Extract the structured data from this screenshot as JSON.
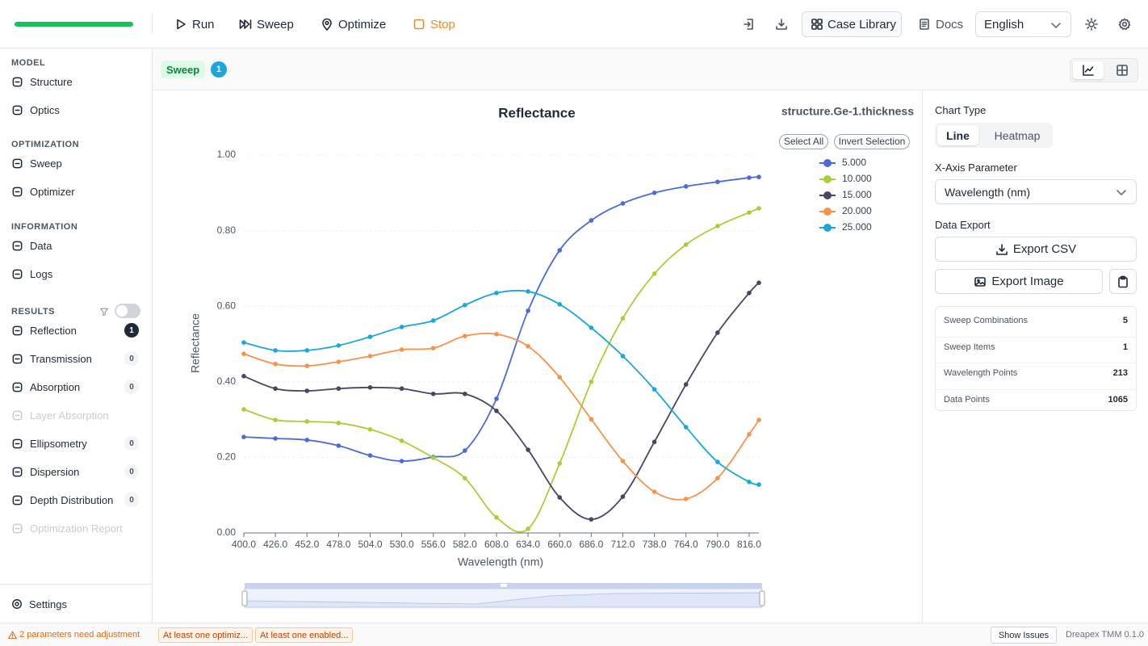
{
  "toolbar": {
    "actions": [
      "Run",
      "Sweep",
      "Optimize",
      "Stop"
    ],
    "case_library": "Case Library",
    "docs": "Docs",
    "language": "English"
  },
  "sidebar": {
    "sections": [
      {
        "title": "MODEL",
        "items": [
          {
            "label": "Structure"
          },
          {
            "label": "Optics"
          }
        ]
      },
      {
        "title": "OPTIMIZATION",
        "items": [
          {
            "label": "Sweep"
          },
          {
            "label": "Optimizer"
          }
        ]
      },
      {
        "title": "INFORMATION",
        "items": [
          {
            "label": "Data"
          },
          {
            "label": "Logs"
          }
        ]
      },
      {
        "title": "RESULTS",
        "items": [
          {
            "label": "Reflection",
            "badge": 1
          },
          {
            "label": "Transmission",
            "badge": 0
          },
          {
            "label": "Absorption",
            "badge": 0
          },
          {
            "label": "Layer Absorption",
            "disabled": true
          },
          {
            "label": "Ellipsometry",
            "badge": 0
          },
          {
            "label": "Dispersion",
            "badge": 0
          },
          {
            "label": "Depth Distribution",
            "badge": 0
          },
          {
            "label": "Optimization Report",
            "disabled": true
          }
        ]
      }
    ],
    "settings": "Settings"
  },
  "tab": {
    "label": "Sweep",
    "count": 1
  },
  "chart_data": {
    "type": "line",
    "title": "Reflectance",
    "legend_title": "structure.Ge-1.thickness",
    "legend_controls": [
      "Select All",
      "Invert Selection"
    ],
    "x_label": "Wavelength (nm)",
    "y_label": "Reflectance",
    "x": [
      400,
      426,
      452,
      478,
      504,
      530,
      556,
      582,
      608,
      634,
      660,
      686,
      712,
      738,
      764,
      790,
      816,
      824
    ],
    "xlim": [
      400,
      824
    ],
    "xticks": [
      {
        "value": 400,
        "label": "400.0"
      },
      {
        "value": 426,
        "label": "426.0"
      },
      {
        "value": 452,
        "label": "452.0"
      },
      {
        "value": 478,
        "label": "478.0"
      },
      {
        "value": 504,
        "label": "504.0"
      },
      {
        "value": 530,
        "label": "530.0"
      },
      {
        "value": 556,
        "label": "556.0"
      },
      {
        "value": 582,
        "label": "582.0"
      },
      {
        "value": 608,
        "label": "608.0"
      },
      {
        "value": 634,
        "label": "634.0"
      },
      {
        "value": 660,
        "label": "660.0"
      },
      {
        "value": 686,
        "label": "686.0"
      },
      {
        "value": 712,
        "label": "712.0"
      },
      {
        "value": 738,
        "label": "738.0"
      },
      {
        "value": 764,
        "label": "764.0"
      },
      {
        "value": 790,
        "label": "790.0"
      },
      {
        "value": 816,
        "label": "816.0"
      }
    ],
    "ylim": [
      0,
      1
    ],
    "yticks": [
      {
        "value": 0,
        "label": "0.00"
      },
      {
        "value": 0.2,
        "label": "0.20"
      },
      {
        "value": 0.4,
        "label": "0.40"
      },
      {
        "value": 0.6,
        "label": "0.60"
      },
      {
        "value": 0.8,
        "label": "0.80"
      },
      {
        "value": 1,
        "label": "1.00"
      }
    ],
    "grid": true,
    "series": [
      {
        "name": "5.000",
        "color": "#4b6cd8",
        "values": [
          0.254,
          0.25,
          0.246,
          0.231,
          0.205,
          0.19,
          0.201,
          0.218,
          0.355,
          0.588,
          0.748,
          0.827,
          0.872,
          0.9,
          0.917,
          0.929,
          0.94,
          0.942
        ]
      },
      {
        "name": "10.000",
        "color": "#a9cf38",
        "values": [
          0.327,
          0.299,
          0.295,
          0.291,
          0.274,
          0.244,
          0.199,
          0.145,
          0.041,
          0.011,
          0.184,
          0.4,
          0.568,
          0.686,
          0.763,
          0.812,
          0.848,
          0.859
        ]
      },
      {
        "name": "15.000",
        "color": "#474763",
        "values": [
          0.415,
          0.382,
          0.376,
          0.382,
          0.385,
          0.382,
          0.368,
          0.368,
          0.323,
          0.22,
          0.094,
          0.036,
          0.096,
          0.241,
          0.393,
          0.53,
          0.635,
          0.662
        ]
      },
      {
        "name": "20.000",
        "color": "#f7924a",
        "values": [
          0.474,
          0.447,
          0.442,
          0.453,
          0.468,
          0.485,
          0.489,
          0.521,
          0.526,
          0.494,
          0.412,
          0.301,
          0.19,
          0.109,
          0.09,
          0.145,
          0.261,
          0.299
        ]
      },
      {
        "name": "25.000",
        "color": "#1ba6dc",
        "values": [
          0.504,
          0.483,
          0.483,
          0.496,
          0.519,
          0.545,
          0.562,
          0.603,
          0.635,
          0.639,
          0.605,
          0.543,
          0.468,
          0.38,
          0.28,
          0.188,
          0.135,
          0.128
        ]
      }
    ]
  },
  "panel": {
    "chart_type_label": "Chart Type",
    "chart_types": [
      "Line",
      "Heatmap"
    ],
    "x_axis_label": "X-Axis Parameter",
    "x_axis_value": "Wavelength (nm)",
    "export_label": "Data Export",
    "export_csv": "Export CSV",
    "export_image": "Export Image",
    "stats": [
      {
        "label": "Sweep Combinations",
        "value": 5
      },
      {
        "label": "Sweep Items",
        "value": 1
      },
      {
        "label": "Wavelength Points",
        "value": 213
      },
      {
        "label": "Data Points",
        "value": 1065
      }
    ]
  },
  "status": {
    "warning": "2 parameters need adjustment",
    "chips": [
      "At least one optimiz...",
      "At least one enabled..."
    ],
    "show_issues": "Show Issues",
    "version": "Dreapex TMM 0.1.0"
  }
}
